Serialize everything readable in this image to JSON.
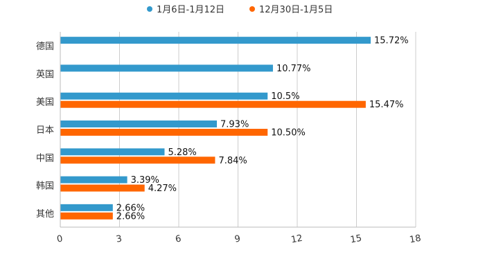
{
  "chart_data": {
    "type": "bar",
    "orientation": "horizontal",
    "categories": [
      "德国",
      "英国",
      "美国",
      "日本",
      "中国",
      "韩国",
      "其他"
    ],
    "series": [
      {
        "name": "1月6日-1月12日",
        "color": "#3399cc",
        "values": [
          15.72,
          10.77,
          10.5,
          7.93,
          5.28,
          3.39,
          2.66
        ],
        "labels": [
          "15.72%",
          "10.77%",
          "10.5%",
          "7.93%",
          "5.28%",
          "3.39%",
          "2.66%"
        ]
      },
      {
        "name": "12月30日-1月5日",
        "color": "#ff6600",
        "values": [
          null,
          null,
          15.47,
          10.5,
          7.84,
          4.27,
          2.66
        ],
        "labels": [
          null,
          null,
          "15.47%",
          "10.50%",
          "7.84%",
          "4.27%",
          "2.66%"
        ]
      }
    ],
    "xlim": [
      0,
      18
    ],
    "xticks": [
      "0",
      "3",
      "6",
      "9",
      "12",
      "15",
      "18"
    ],
    "grid": true,
    "legend_position": "top-center",
    "title": "",
    "xlabel": "",
    "ylabel": ""
  }
}
